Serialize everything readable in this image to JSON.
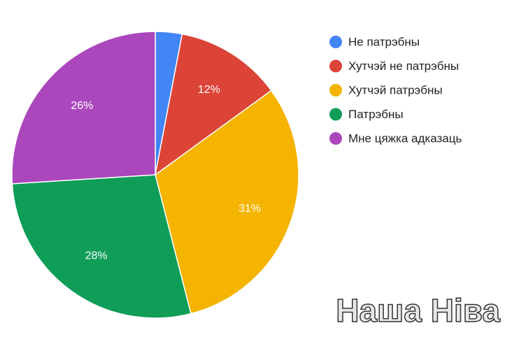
{
  "chart_data": {
    "type": "pie",
    "categories": [
      "Не патрэбны",
      "Хутчэй не патрэбны",
      "Хутчэй патрэбны",
      "Патрэбны",
      "Мне цяжка адказаць"
    ],
    "values": [
      3,
      12,
      31,
      28,
      26
    ],
    "value_labels": [
      null,
      "12%",
      "31%",
      "28%",
      "26%"
    ],
    "colors": [
      "#4285f4",
      "#db4437",
      "#f4b400",
      "#0f9d58",
      "#ab47bc"
    ],
    "legend": "right",
    "watermark": "Наша Ніва"
  }
}
